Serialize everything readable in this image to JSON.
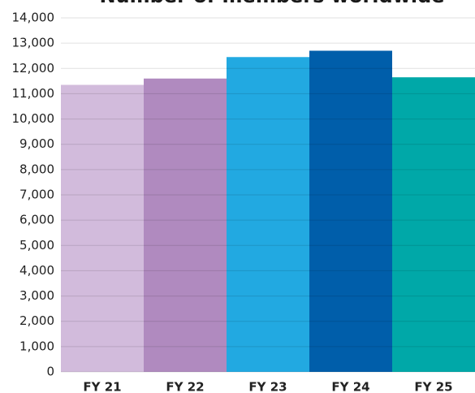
{
  "chart_data": {
    "type": "bar",
    "title": "Number of members worldwide",
    "categories": [
      "FY 21",
      "FY 22",
      "FY 23",
      "FY 24",
      "FY 25"
    ],
    "values": [
      11350,
      11600,
      12450,
      12700,
      11650
    ],
    "colors": [
      "#d2bbdc",
      "#b08abf",
      "#22a9e1",
      "#005eaa",
      "#00a8a8"
    ],
    "ylim": [
      0,
      14000
    ],
    "yticks": [
      0,
      {
        "value": 1000,
        "label": "1,000"
      },
      {
        "value": 2000,
        "label": "2,000"
      },
      {
        "value": 3000,
        "label": "3,000"
      },
      {
        "value": 4000,
        "label": "4,000"
      },
      {
        "value": 5000,
        "label": "5,000"
      },
      {
        "value": 6000,
        "label": "6,000"
      },
      {
        "value": 7000,
        "label": "7,000"
      },
      {
        "value": 8000,
        "label": "8,000"
      },
      {
        "value": 9000,
        "label": "9,000"
      },
      {
        "value": 10000,
        "label": "10,000"
      },
      {
        "value": 11000,
        "label": "11,000"
      },
      {
        "value": 12000,
        "label": "12,000"
      },
      {
        "value": 13000,
        "label": "13,000"
      },
      {
        "value": 14000,
        "label": "14,000"
      }
    ],
    "grid": true
  }
}
